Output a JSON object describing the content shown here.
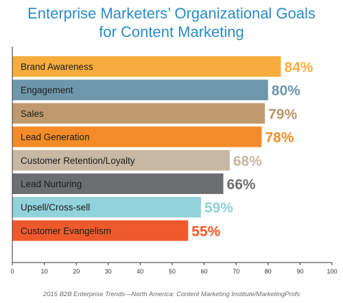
{
  "chart_data": {
    "type": "bar",
    "orientation": "horizontal",
    "title_lines": [
      "Enterprise Marketers’ Organizational Goals",
      "for Content Marketing"
    ],
    "categories": [
      "Brand Awareness",
      "Engagement",
      "Sales",
      "Lead Generation",
      "Customer Retention/Loyalty",
      "Lead Nurturing",
      "Upsell/Cross-sell",
      "Customer Evangelism"
    ],
    "values": [
      84,
      80,
      79,
      78,
      68,
      66,
      59,
      55
    ],
    "value_labels": [
      "84%",
      "80%",
      "79%",
      "78%",
      "68%",
      "66%",
      "59%",
      "55%"
    ],
    "bar_colors": [
      "#f6ad3e",
      "#6f97ab",
      "#c09a6e",
      "#f38c28",
      "#c6b8a2",
      "#6c6e72",
      "#92d2da",
      "#ee5a2c"
    ],
    "label_colors": [
      "#f6ad3e",
      "#6f97ab",
      "#b8946a",
      "#f38c28",
      "#c6b8a2",
      "#6c6e72",
      "#8fd0d8",
      "#ee5a2c"
    ],
    "xlim": [
      0,
      100
    ],
    "xticks": [
      "0",
      "10",
      "20",
      "30",
      "40",
      "50",
      "60",
      "70",
      "80",
      "90",
      "100"
    ],
    "grid": false,
    "legend": "none"
  },
  "footer": "2015 B2B Enterprise Trends—North America: Content Marketing Institute/MarketingProfs"
}
